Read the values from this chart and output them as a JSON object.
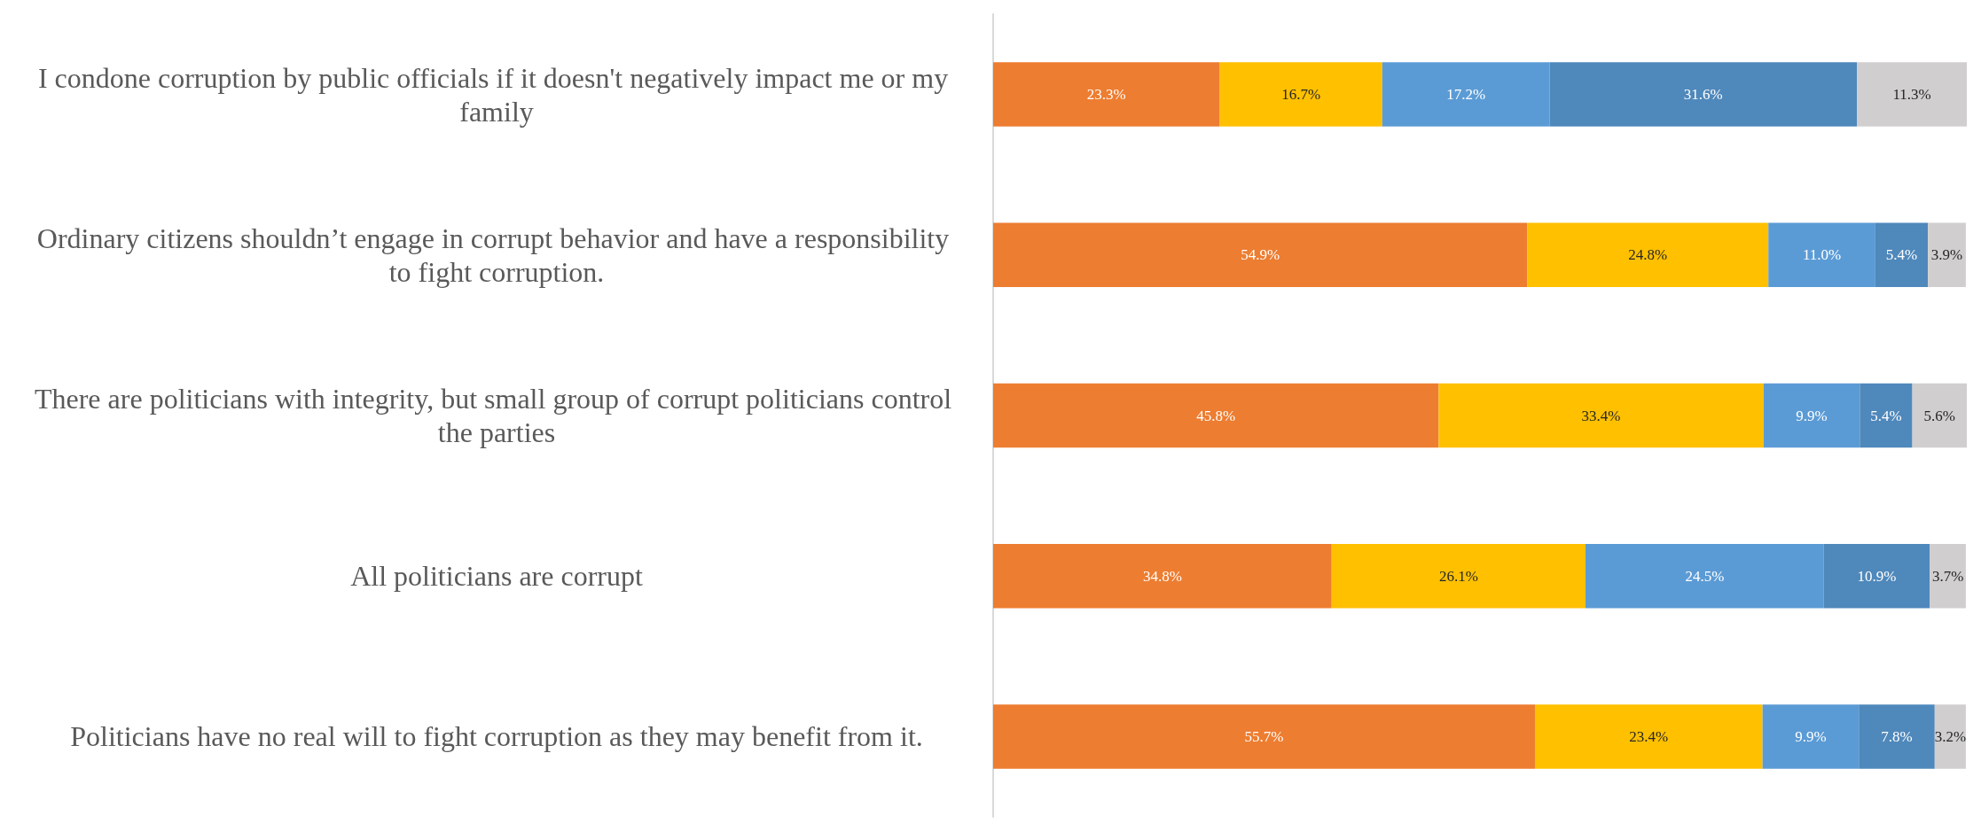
{
  "chart_data": {
    "type": "bar",
    "orientation": "horizontal",
    "stacked": true,
    "grid": false,
    "categories": [
      "I condone corruption by public officials if it doesn't negatively impact me or my family",
      "Ordinary citizens shouldn’t engage in corrupt behavior and have a responsibility to fight corruption.",
      "There are politicians with integrity, but small group of corrupt politicians control the parties",
      "All politicians are corrupt",
      "Politicians have no real will to fight corruption as they may benefit from it."
    ],
    "series": [
      {
        "color": "#ed7d31",
        "values": [
          23.3,
          54.9,
          45.8,
          34.8,
          55.7
        ],
        "value_labels": [
          "23.3%",
          "54.9%",
          "45.8%",
          "34.8%",
          "55.7%"
        ]
      },
      {
        "color": "#ffc000",
        "values": [
          16.7,
          24.8,
          33.4,
          26.1,
          23.4
        ],
        "value_labels": [
          "16.7%",
          "24.8%",
          "33.4%",
          "26.1%",
          "23.4%"
        ]
      },
      {
        "color": "#5b9bd5",
        "values": [
          17.2,
          11.0,
          9.9,
          24.5,
          9.9
        ],
        "value_labels": [
          "17.2%",
          "11.0%",
          "9.9%",
          "24.5%",
          "9.9%"
        ]
      },
      {
        "color": "#4f88bb",
        "values": [
          31.6,
          5.4,
          5.4,
          10.9,
          7.8
        ],
        "value_labels": [
          "31.6%",
          "5.4%",
          "5.4%",
          "10.9%",
          "7.8%"
        ]
      },
      {
        "color": "#d0cece",
        "values": [
          11.3,
          3.9,
          5.6,
          3.7,
          3.2
        ],
        "value_labels": [
          "11.3%",
          "3.9%",
          "5.6%",
          "3.7%",
          "3.2%"
        ]
      }
    ]
  }
}
